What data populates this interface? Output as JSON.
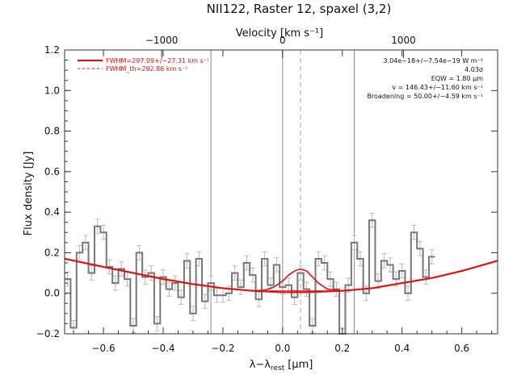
{
  "chart_data": {
    "type": "line",
    "title": "NII122, Raster 12, spaxel (3,2)",
    "xlabel": "λ−λ",
    "xlabel_sub": "rest",
    "xlabel_unit": "[μm]",
    "ylabel": "Flux density [Jy]",
    "top_axis_label": "Velocity [km s⁻¹]",
    "xlim": [
      -0.73,
      0.72
    ],
    "ylim": [
      -0.2,
      1.2
    ],
    "x_ticks": [
      -0.6,
      -0.4,
      -0.2,
      0.0,
      0.2,
      0.4,
      0.6
    ],
    "x_tick_labels": [
      "−0.6",
      "−0.4",
      "−0.2",
      "0.0",
      "0.2",
      "0.4",
      "0.6"
    ],
    "y_ticks": [
      -0.2,
      0.0,
      0.2,
      0.4,
      0.6,
      0.8,
      1.0,
      1.2
    ],
    "y_tick_labels": [
      "−0.2",
      "0.0",
      "0.2",
      "0.4",
      "0.6",
      "0.8",
      "1.0",
      "1.2"
    ],
    "top_ticks_x": [
      -0.405,
      0.0,
      0.405
    ],
    "top_tick_labels": [
      "−1000",
      "0",
      "1000"
    ],
    "vertical_lines_x": [
      -0.24,
      0.0,
      0.24
    ],
    "fit_center_x": 0.06,
    "legend": [
      {
        "label": "FWHM=297.09+/−27.31 km s⁻¹",
        "style": "solid",
        "color": "#dd1111"
      },
      {
        "label": "FWHM_th=292.86 km s⁻¹",
        "style": "dashed",
        "color": "#dd1111"
      }
    ],
    "annotations": [
      "3.04e−18+/−7.54e−19 W m⁻²",
      "4.03σ",
      "EQW = 1.80 μm",
      "v = 146.43+/−11.60 km s⁻¹",
      "Broadening = 50.00+/−4.59 km s⁻¹"
    ],
    "spectrum": {
      "x_start": -0.73,
      "bin_width": 0.02,
      "values": [
        0.07,
        -0.17,
        0.2,
        0.25,
        0.1,
        0.33,
        0.3,
        0.13,
        0.05,
        0.12,
        0.07,
        -0.16,
        0.2,
        0.08,
        0.1,
        -0.15,
        0.08,
        0.02,
        0.05,
        -0.02,
        0.16,
        -0.1,
        0.17,
        -0.04,
        0.05,
        -0.01,
        -0.01,
        0.0,
        0.1,
        0.03,
        0.15,
        0.09,
        -0.03,
        0.17,
        0.04,
        0.14,
        0.03,
        0.04,
        -0.02,
        0.1,
        0.02,
        -0.16,
        0.17,
        0.15,
        0.07,
        0.02,
        -0.21,
        0.04,
        0.25,
        0.17,
        0.0,
        0.36,
        0.06,
        0.16,
        0.14,
        0.07,
        0.11,
        0.0,
        0.3,
        0.22,
        0.08,
        0.18
      ],
      "error": 0.035,
      "color": "#777777"
    },
    "continuum_fit": {
      "color": "#dd1111",
      "x": [
        -0.73,
        -0.6,
        -0.5,
        -0.4,
        -0.3,
        -0.2,
        -0.1,
        0.0,
        0.05,
        0.1,
        0.2,
        0.3,
        0.4,
        0.5,
        0.6,
        0.72
      ],
      "y": [
        0.17,
        0.13,
        0.1,
        0.07,
        0.045,
        0.025,
        0.012,
        0.005,
        0.005,
        0.006,
        0.012,
        0.025,
        0.05,
        0.075,
        0.11,
        0.16
      ]
    },
    "line_fit": {
      "color": "#dd1111",
      "x": [
        -0.1,
        -0.06,
        -0.03,
        0.0,
        0.02,
        0.04,
        0.06,
        0.08,
        0.1,
        0.12,
        0.15,
        0.2
      ],
      "y": [
        0.012,
        0.015,
        0.03,
        0.06,
        0.09,
        0.11,
        0.12,
        0.11,
        0.08,
        0.05,
        0.02,
        0.012
      ]
    }
  }
}
